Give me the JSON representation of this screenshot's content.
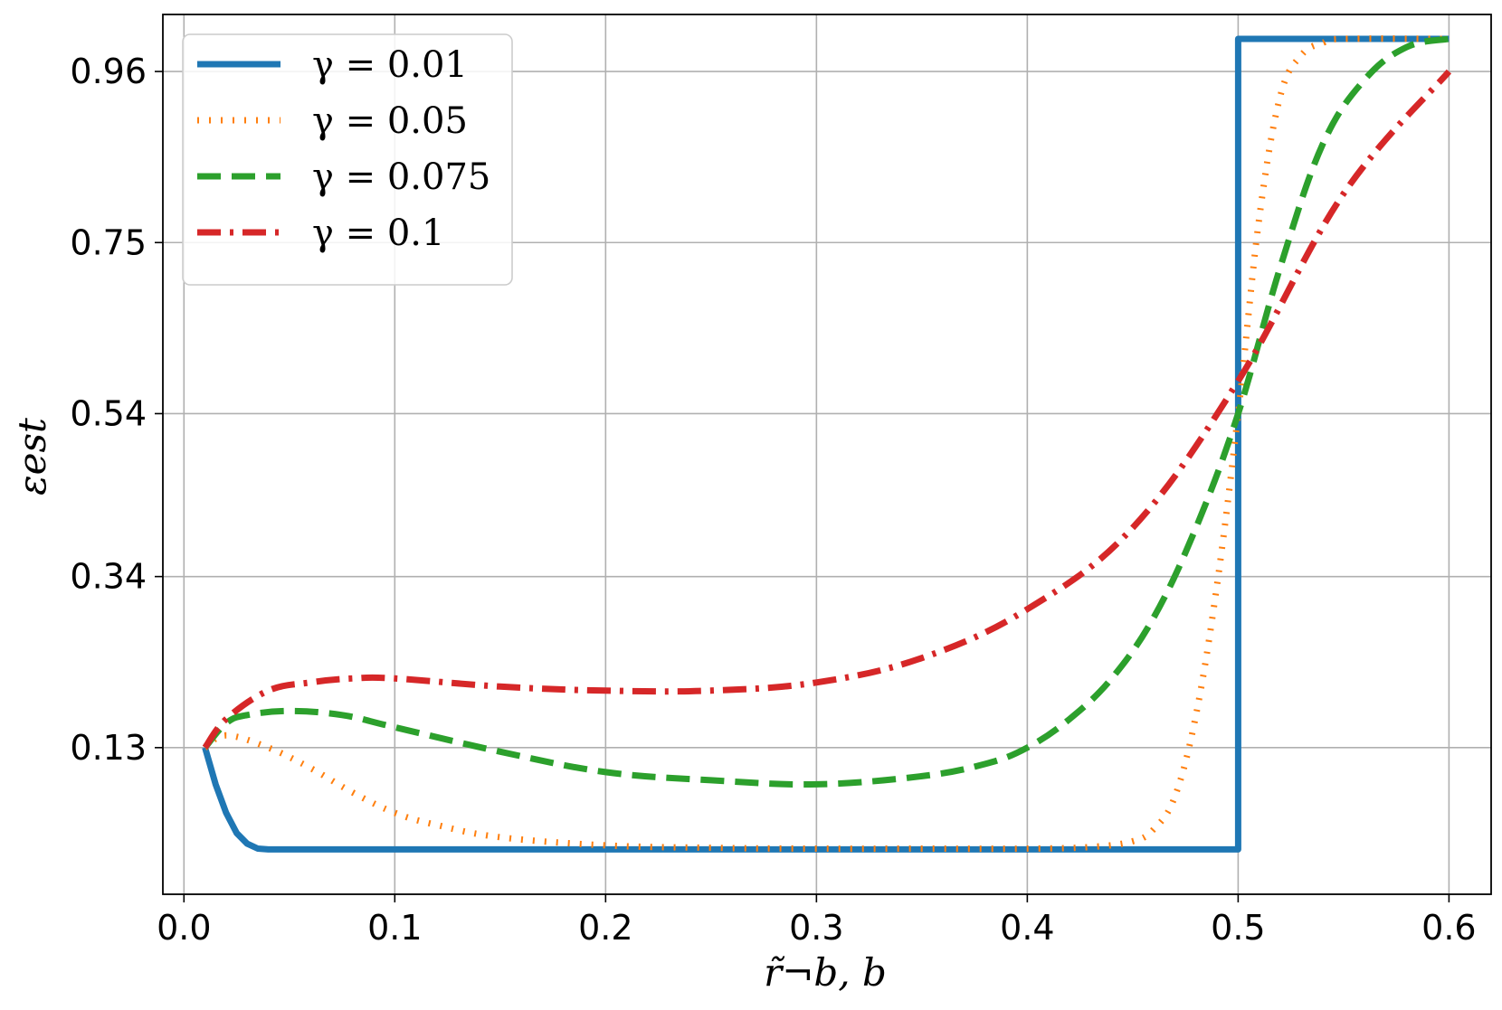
{
  "chart_data": {
    "type": "line",
    "title": "",
    "xlabel": "r̃¬b, b",
    "ylabel": "εest",
    "xlim": [
      -0.01,
      0.62
    ],
    "ylim": [
      -0.05,
      1.03
    ],
    "x_ticks": [
      0.0,
      0.1,
      0.2,
      0.3,
      0.4,
      0.5,
      0.6
    ],
    "x_tick_labels": [
      "0.0",
      "0.1",
      "0.2",
      "0.3",
      "0.4",
      "0.5",
      "0.6"
    ],
    "y_ticks": [
      0.13,
      0.34,
      0.54,
      0.75,
      0.96
    ],
    "y_tick_labels": [
      "0.13",
      "0.34",
      "0.54",
      "0.75",
      "0.96"
    ],
    "grid": true,
    "legend_position": "top-left",
    "series": [
      {
        "name": "γ = 0.01",
        "color": "#1f77b4",
        "style": "solid",
        "x": [
          0.01,
          0.015,
          0.02,
          0.025,
          0.03,
          0.035,
          0.04,
          0.05,
          0.1,
          0.2,
          0.3,
          0.4,
          0.5,
          0.5,
          0.55,
          0.6
        ],
        "y": [
          0.13,
          0.085,
          0.05,
          0.025,
          0.012,
          0.006,
          0.005,
          0.005,
          0.005,
          0.005,
          0.005,
          0.005,
          0.005,
          1.0,
          1.0,
          1.0
        ]
      },
      {
        "name": "γ = 0.05",
        "color": "#ff7f0e",
        "style": "dotted",
        "x": [
          0.01,
          0.02,
          0.04,
          0.06,
          0.08,
          0.1,
          0.12,
          0.15,
          0.2,
          0.25,
          0.3,
          0.35,
          0.4,
          0.43,
          0.45,
          0.46,
          0.47,
          0.48,
          0.49,
          0.5,
          0.51,
          0.52,
          0.53,
          0.54,
          0.55,
          0.6
        ],
        "y": [
          0.13,
          0.145,
          0.13,
          0.105,
          0.075,
          0.05,
          0.035,
          0.02,
          0.01,
          0.007,
          0.006,
          0.006,
          0.006,
          0.008,
          0.015,
          0.03,
          0.07,
          0.17,
          0.33,
          0.54,
          0.78,
          0.93,
          0.98,
          0.995,
          1.0,
          1.0
        ]
      },
      {
        "name": "γ = 0.075",
        "color": "#2ca02c",
        "style": "dashed",
        "x": [
          0.01,
          0.02,
          0.03,
          0.05,
          0.075,
          0.1,
          0.15,
          0.2,
          0.25,
          0.3,
          0.35,
          0.38,
          0.4,
          0.42,
          0.44,
          0.46,
          0.48,
          0.5,
          0.52,
          0.54,
          0.56,
          0.58,
          0.6
        ],
        "y": [
          0.13,
          0.16,
          0.17,
          0.175,
          0.17,
          0.155,
          0.125,
          0.1,
          0.09,
          0.085,
          0.095,
          0.11,
          0.13,
          0.165,
          0.215,
          0.29,
          0.4,
          0.54,
          0.72,
          0.87,
          0.95,
          0.99,
          1.0
        ]
      },
      {
        "name": "γ = 0.1",
        "color": "#d62728",
        "style": "dashdot",
        "x": [
          0.01,
          0.02,
          0.04,
          0.06,
          0.08,
          0.1,
          0.15,
          0.2,
          0.25,
          0.3,
          0.35,
          0.4,
          0.45,
          0.5,
          0.55,
          0.6
        ],
        "y": [
          0.13,
          0.165,
          0.2,
          0.21,
          0.215,
          0.215,
          0.205,
          0.2,
          0.2,
          0.21,
          0.24,
          0.3,
          0.4,
          0.58,
          0.81,
          0.96
        ]
      }
    ]
  }
}
